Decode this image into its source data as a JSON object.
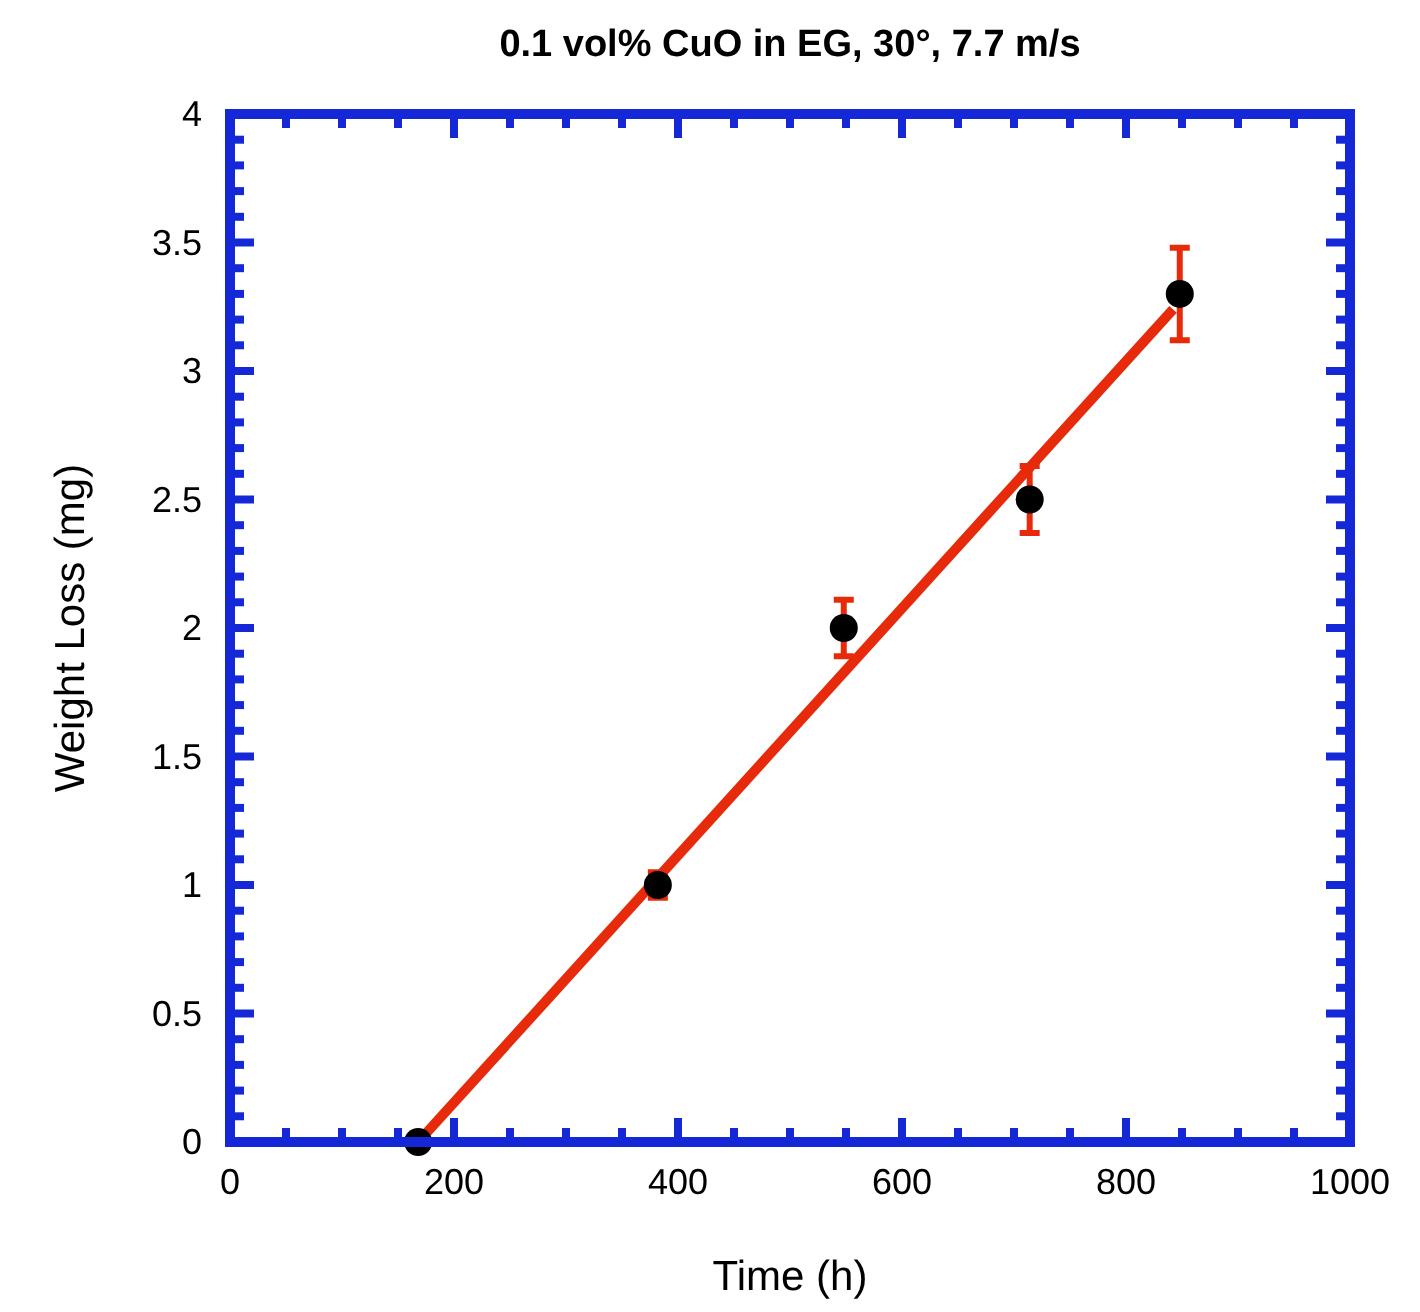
{
  "chart_data": {
    "type": "scatter",
    "title": "0.1 vol% CuO in EG, 30°, 7.7 m/s",
    "xlabel": "Time (h)",
    "ylabel": "Weight Loss (mg)",
    "xlim": [
      0,
      1000
    ],
    "ylim": [
      0,
      4
    ],
    "xticks": [
      0,
      {
        "value": 50,
        "label": null
      },
      {
        "value": 100,
        "label": null
      },
      {
        "value": 150,
        "label": null
      },
      200,
      {
        "value": 250,
        "label": null
      },
      {
        "value": 300,
        "label": null
      },
      {
        "value": 350,
        "label": null
      },
      400,
      {
        "value": 450,
        "label": null
      },
      {
        "value": 500,
        "label": null
      },
      {
        "value": 550,
        "label": null
      },
      600,
      {
        "value": 650,
        "label": null
      },
      {
        "value": 700,
        "label": null
      },
      {
        "value": 750,
        "label": null
      },
      800,
      {
        "value": 850,
        "label": null
      },
      {
        "value": 900,
        "label": null
      },
      {
        "value": 950,
        "label": null
      },
      1000
    ],
    "yticks": [
      0,
      {
        "value": 0.1,
        "label": null
      },
      {
        "value": 0.2,
        "label": null
      },
      {
        "value": 0.3,
        "label": null
      },
      {
        "value": 0.4,
        "label": null
      },
      0.5,
      {
        "value": 0.6,
        "label": null
      },
      {
        "value": 0.7,
        "label": null
      },
      {
        "value": 0.8,
        "label": null
      },
      {
        "value": 0.9,
        "label": null
      },
      1,
      {
        "value": 1.1,
        "label": null
      },
      {
        "value": 1.2,
        "label": null
      },
      {
        "value": 1.3,
        "label": null
      },
      {
        "value": 1.4,
        "label": null
      },
      1.5,
      {
        "value": 1.6,
        "label": null
      },
      {
        "value": 1.7,
        "label": null
      },
      {
        "value": 1.8,
        "label": null
      },
      {
        "value": 1.9,
        "label": null
      },
      2,
      {
        "value": 2.1,
        "label": null
      },
      {
        "value": 2.2,
        "label": null
      },
      {
        "value": 2.3,
        "label": null
      },
      {
        "value": 2.4,
        "label": null
      },
      2.5,
      {
        "value": 2.6,
        "label": null
      },
      {
        "value": 2.7,
        "label": null
      },
      {
        "value": 2.8,
        "label": null
      },
      {
        "value": 2.9,
        "label": null
      },
      3,
      {
        "value": 3.1,
        "label": null
      },
      {
        "value": 3.2,
        "label": null
      },
      {
        "value": 3.3,
        "label": null
      },
      {
        "value": 3.4,
        "label": null
      },
      3.5,
      {
        "value": 3.6,
        "label": null
      },
      {
        "value": 3.7,
        "label": null
      },
      {
        "value": 3.8,
        "label": null
      },
      {
        "value": 3.9,
        "label": null
      },
      4
    ],
    "grid": false,
    "series": [
      {
        "type": "line",
        "color": "#e62a0a",
        "x": [
          168,
          842
        ],
        "values": [
          0,
          3.24
        ],
        "line_style": "solid",
        "marker": "none"
      },
      {
        "color": "#000000",
        "marker": "circle",
        "x": [
          168,
          382,
          548,
          714,
          848
        ],
        "values": [
          0,
          1,
          2,
          2.5,
          3.3
        ],
        "errors": [
          null,
          0.05,
          0.11,
          0.13,
          0.18
        ]
      }
    ]
  }
}
